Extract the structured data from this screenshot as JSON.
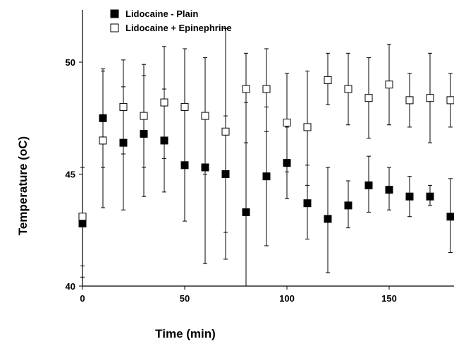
{
  "chart_data": {
    "type": "scatter",
    "title": "",
    "xlabel": "Time (min)",
    "ylabel": "Temperature (oC)",
    "xlim": [
      0,
      180
    ],
    "ylim": [
      40,
      52
    ],
    "xticks": [
      0,
      50,
      100,
      150
    ],
    "yticks": [
      40,
      45,
      50
    ],
    "grid": false,
    "legend_position": "top-left",
    "error_bars": true,
    "series": [
      {
        "name": "Lidocaine - Plain",
        "marker": "filled-square",
        "color": "#000000",
        "points": [
          {
            "x": 0,
            "y": 42.8,
            "lo": 40.4,
            "hi": 45.3
          },
          {
            "x": 10,
            "y": 47.5,
            "lo": 43.5,
            "hi": 49.6
          },
          {
            "x": 20,
            "y": 46.4,
            "lo": 43.4,
            "hi": 48.9
          },
          {
            "x": 30,
            "y": 46.8,
            "lo": 44.0,
            "hi": 49.4
          },
          {
            "x": 40,
            "y": 46.5,
            "lo": 44.2,
            "hi": 48.8
          },
          {
            "x": 50,
            "y": 45.4,
            "lo": 42.9,
            "hi": 47.9
          },
          {
            "x": 60,
            "y": 45.3,
            "lo": 41.0,
            "hi": 47.7
          },
          {
            "x": 70,
            "y": 45.0,
            "lo": 41.2,
            "hi": 47.6
          },
          {
            "x": 80,
            "y": 43.3,
            "lo": 37.9,
            "hi": 48.2
          },
          {
            "x": 90,
            "y": 44.9,
            "lo": 41.8,
            "hi": 48.0
          },
          {
            "x": 100,
            "y": 45.5,
            "lo": 43.9,
            "hi": 47.1
          },
          {
            "x": 110,
            "y": 43.7,
            "lo": 42.1,
            "hi": 45.4
          },
          {
            "x": 120,
            "y": 43.0,
            "lo": 40.6,
            "hi": 45.3
          },
          {
            "x": 130,
            "y": 43.6,
            "lo": 42.6,
            "hi": 44.7
          },
          {
            "x": 140,
            "y": 44.5,
            "lo": 43.3,
            "hi": 45.8
          },
          {
            "x": 150,
            "y": 44.3,
            "lo": 43.4,
            "hi": 45.3
          },
          {
            "x": 160,
            "y": 44.0,
            "lo": 43.1,
            "hi": 44.9
          },
          {
            "x": 170,
            "y": 44.0,
            "lo": 43.6,
            "hi": 44.5
          },
          {
            "x": 180,
            "y": 43.1,
            "lo": 41.5,
            "hi": 44.8
          }
        ]
      },
      {
        "name": "Lidocaine + Epinephrine",
        "marker": "open-square",
        "color": "#000000",
        "points": [
          {
            "x": 0,
            "y": 43.1,
            "lo": 40.9,
            "hi": 45.3
          },
          {
            "x": 10,
            "y": 46.5,
            "lo": 45.3,
            "hi": 49.7
          },
          {
            "x": 20,
            "y": 48.0,
            "lo": 45.9,
            "hi": 50.1
          },
          {
            "x": 30,
            "y": 47.6,
            "lo": 45.3,
            "hi": 49.9
          },
          {
            "x": 40,
            "y": 48.2,
            "lo": 45.7,
            "hi": 50.7
          },
          {
            "x": 50,
            "y": 48.0,
            "lo": 45.4,
            "hi": 50.6
          },
          {
            "x": 60,
            "y": 47.6,
            "lo": 45.0,
            "hi": 50.2
          },
          {
            "x": 70,
            "y": 46.9,
            "lo": 42.4,
            "hi": 51.5
          },
          {
            "x": 80,
            "y": 48.8,
            "lo": 46.4,
            "hi": 50.4
          },
          {
            "x": 90,
            "y": 48.8,
            "lo": 46.9,
            "hi": 50.6
          },
          {
            "x": 100,
            "y": 47.3,
            "lo": 45.1,
            "hi": 49.5
          },
          {
            "x": 110,
            "y": 47.1,
            "lo": 44.5,
            "hi": 49.6
          },
          {
            "x": 120,
            "y": 49.2,
            "lo": 48.1,
            "hi": 50.4
          },
          {
            "x": 130,
            "y": 48.8,
            "lo": 47.2,
            "hi": 50.4
          },
          {
            "x": 140,
            "y": 48.4,
            "lo": 46.6,
            "hi": 50.2
          },
          {
            "x": 150,
            "y": 49.0,
            "lo": 47.2,
            "hi": 50.8
          },
          {
            "x": 160,
            "y": 48.3,
            "lo": 47.1,
            "hi": 49.5
          },
          {
            "x": 170,
            "y": 48.4,
            "lo": 46.4,
            "hi": 50.4
          },
          {
            "x": 180,
            "y": 48.3,
            "lo": 47.1,
            "hi": 49.5
          }
        ]
      }
    ]
  }
}
